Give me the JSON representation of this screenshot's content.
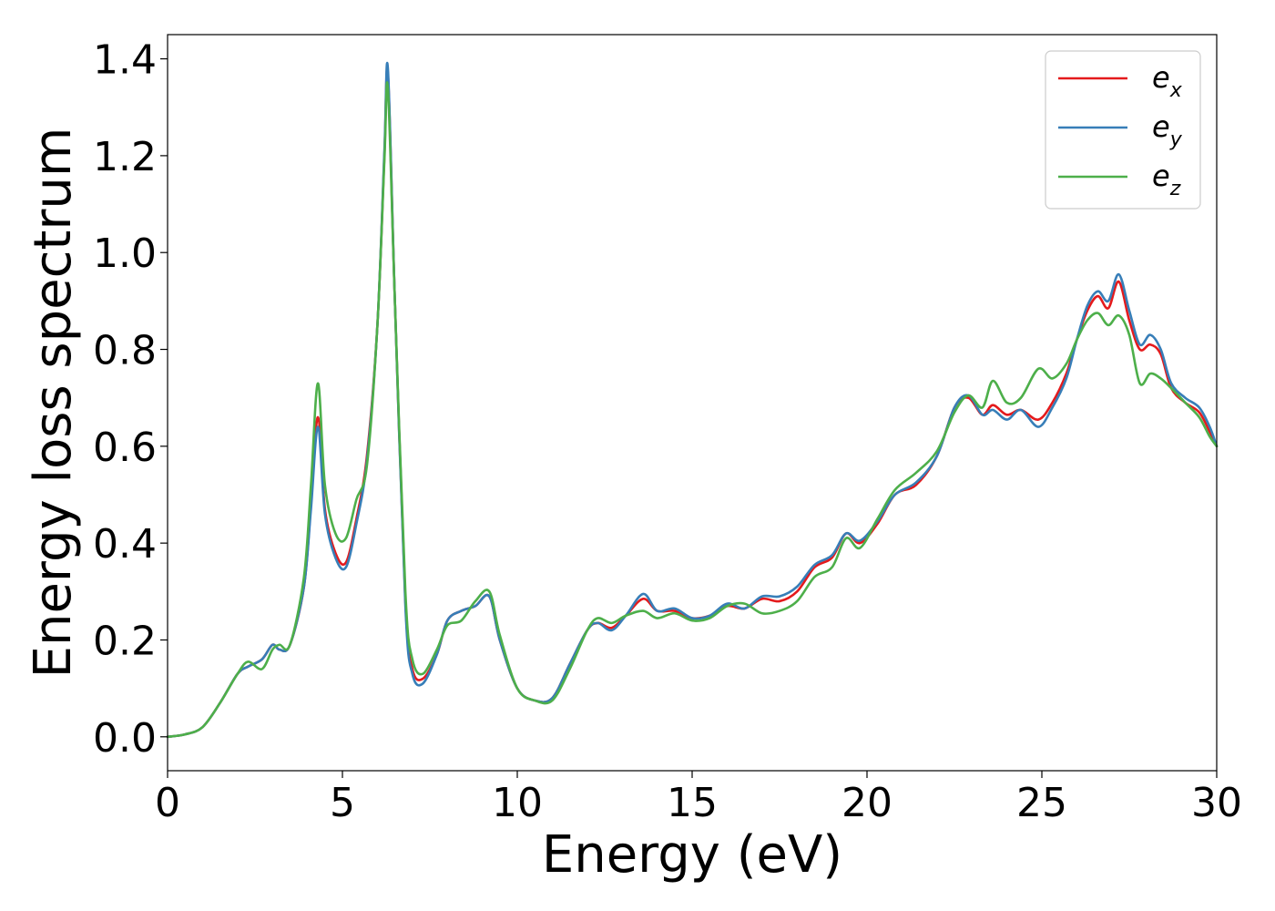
{
  "chart_data": {
    "type": "line",
    "xlabel": "Energy (eV)",
    "ylabel": "Energy loss spectrum",
    "xlim": [
      0,
      30
    ],
    "ylim": [
      -0.07,
      1.45
    ],
    "xticks": [
      0,
      5,
      10,
      15,
      20,
      25,
      30
    ],
    "xtick_labels": [
      "0",
      "5",
      "10",
      "15",
      "20",
      "25",
      "30"
    ],
    "yticks": [
      0.0,
      0.2,
      0.4,
      0.6,
      0.8,
      1.0,
      1.2,
      1.4
    ],
    "ytick_labels": [
      "0.0",
      "0.2",
      "0.4",
      "0.6",
      "0.8",
      "1.0",
      "1.2",
      "1.4"
    ],
    "grid": false,
    "legend_position": "top-right",
    "series": [
      {
        "name": "e_x",
        "legend_base": "e",
        "legend_sub": "x",
        "color": "#e41a1c",
        "x": [
          0,
          0.5,
          1.0,
          1.5,
          2.0,
          2.3,
          2.7,
          3.0,
          3.2,
          3.5,
          3.9,
          4.1,
          4.3,
          4.5,
          4.8,
          5.1,
          5.4,
          5.7,
          6.0,
          6.2,
          6.3,
          6.5,
          6.8,
          7.0,
          7.3,
          7.7,
          8.0,
          8.4,
          8.8,
          9.2,
          9.5,
          10.0,
          10.5,
          11.0,
          11.5,
          12.0,
          12.3,
          12.7,
          13.1,
          13.6,
          14.0,
          14.5,
          15.0,
          15.5,
          16.0,
          16.5,
          17.0,
          17.5,
          18.0,
          18.5,
          19.0,
          19.4,
          19.8,
          20.3,
          20.8,
          21.4,
          22.0,
          22.5,
          22.9,
          23.3,
          23.6,
          24.0,
          24.4,
          24.9,
          25.3,
          25.7,
          26.0,
          26.3,
          26.6,
          26.9,
          27.2,
          27.5,
          27.8,
          28.1,
          28.4,
          28.7,
          29.1,
          29.5,
          29.8,
          30.0
        ],
        "y": [
          0.0,
          0.005,
          0.02,
          0.07,
          0.13,
          0.145,
          0.16,
          0.19,
          0.18,
          0.19,
          0.31,
          0.48,
          0.66,
          0.47,
          0.38,
          0.36,
          0.45,
          0.58,
          0.85,
          1.2,
          1.37,
          0.9,
          0.28,
          0.14,
          0.12,
          0.17,
          0.24,
          0.26,
          0.27,
          0.29,
          0.2,
          0.1,
          0.075,
          0.08,
          0.15,
          0.22,
          0.235,
          0.225,
          0.25,
          0.285,
          0.26,
          0.26,
          0.245,
          0.25,
          0.27,
          0.265,
          0.285,
          0.28,
          0.3,
          0.35,
          0.37,
          0.42,
          0.4,
          0.44,
          0.5,
          0.52,
          0.58,
          0.68,
          0.7,
          0.665,
          0.685,
          0.665,
          0.675,
          0.655,
          0.69,
          0.75,
          0.82,
          0.88,
          0.91,
          0.885,
          0.94,
          0.86,
          0.8,
          0.81,
          0.79,
          0.72,
          0.69,
          0.67,
          0.63,
          0.6
        ]
      },
      {
        "name": "e_y",
        "legend_base": "e",
        "legend_sub": "y",
        "color": "#377eb8",
        "x": [
          0,
          0.5,
          1.0,
          1.5,
          2.0,
          2.3,
          2.7,
          3.0,
          3.2,
          3.5,
          3.9,
          4.1,
          4.3,
          4.5,
          4.8,
          5.1,
          5.4,
          5.7,
          6.0,
          6.2,
          6.3,
          6.5,
          6.8,
          7.0,
          7.3,
          7.7,
          8.0,
          8.4,
          8.8,
          9.2,
          9.5,
          10.0,
          10.5,
          11.0,
          11.5,
          12.0,
          12.3,
          12.7,
          13.1,
          13.6,
          14.0,
          14.5,
          15.0,
          15.5,
          16.0,
          16.5,
          17.0,
          17.5,
          18.0,
          18.5,
          19.0,
          19.4,
          19.8,
          20.3,
          20.8,
          21.4,
          22.0,
          22.5,
          22.9,
          23.3,
          23.6,
          24.0,
          24.4,
          24.9,
          25.3,
          25.7,
          26.0,
          26.3,
          26.6,
          26.9,
          27.2,
          27.5,
          27.8,
          28.1,
          28.4,
          28.7,
          29.1,
          29.5,
          29.8,
          30.0
        ],
        "y": [
          0.0,
          0.005,
          0.02,
          0.07,
          0.13,
          0.145,
          0.16,
          0.19,
          0.18,
          0.19,
          0.31,
          0.47,
          0.64,
          0.46,
          0.37,
          0.35,
          0.44,
          0.57,
          0.85,
          1.21,
          1.38,
          0.9,
          0.27,
          0.13,
          0.11,
          0.17,
          0.24,
          0.26,
          0.27,
          0.29,
          0.2,
          0.1,
          0.075,
          0.08,
          0.15,
          0.22,
          0.235,
          0.22,
          0.25,
          0.295,
          0.26,
          0.265,
          0.245,
          0.25,
          0.275,
          0.265,
          0.29,
          0.29,
          0.31,
          0.355,
          0.375,
          0.42,
          0.405,
          0.445,
          0.5,
          0.525,
          0.58,
          0.68,
          0.705,
          0.665,
          0.675,
          0.655,
          0.675,
          0.64,
          0.68,
          0.74,
          0.82,
          0.89,
          0.92,
          0.9,
          0.955,
          0.88,
          0.81,
          0.83,
          0.8,
          0.73,
          0.7,
          0.68,
          0.64,
          0.6
        ]
      },
      {
        "name": "e_z",
        "legend_base": "e",
        "legend_sub": "z",
        "color": "#4daf4a",
        "x": [
          0,
          0.5,
          1.0,
          1.5,
          2.0,
          2.3,
          2.7,
          3.0,
          3.2,
          3.5,
          3.9,
          4.1,
          4.3,
          4.5,
          4.8,
          5.1,
          5.4,
          5.7,
          6.0,
          6.2,
          6.3,
          6.5,
          6.8,
          7.0,
          7.3,
          7.7,
          8.0,
          8.4,
          8.8,
          9.2,
          9.5,
          10.0,
          10.5,
          11.0,
          11.5,
          12.0,
          12.3,
          12.7,
          13.1,
          13.6,
          14.0,
          14.5,
          15.0,
          15.5,
          16.0,
          16.5,
          17.0,
          17.5,
          18.0,
          18.5,
          19.0,
          19.4,
          19.8,
          20.3,
          20.8,
          21.4,
          22.0,
          22.5,
          22.9,
          23.3,
          23.6,
          24.0,
          24.4,
          24.9,
          25.3,
          25.7,
          26.0,
          26.3,
          26.6,
          26.9,
          27.2,
          27.5,
          27.8,
          28.1,
          28.4,
          28.7,
          29.1,
          29.5,
          29.8,
          30.0
        ],
        "y": [
          0.0,
          0.005,
          0.02,
          0.07,
          0.13,
          0.155,
          0.14,
          0.18,
          0.19,
          0.19,
          0.33,
          0.52,
          0.73,
          0.52,
          0.42,
          0.41,
          0.49,
          0.56,
          0.85,
          1.19,
          1.34,
          0.9,
          0.3,
          0.16,
          0.13,
          0.18,
          0.23,
          0.24,
          0.28,
          0.3,
          0.21,
          0.1,
          0.075,
          0.075,
          0.14,
          0.22,
          0.245,
          0.235,
          0.25,
          0.26,
          0.245,
          0.255,
          0.24,
          0.245,
          0.27,
          0.275,
          0.255,
          0.26,
          0.28,
          0.33,
          0.35,
          0.41,
          0.39,
          0.45,
          0.51,
          0.545,
          0.59,
          0.67,
          0.705,
          0.68,
          0.735,
          0.69,
          0.7,
          0.76,
          0.74,
          0.77,
          0.82,
          0.86,
          0.875,
          0.85,
          0.87,
          0.83,
          0.73,
          0.75,
          0.74,
          0.72,
          0.69,
          0.66,
          0.62,
          0.6
        ]
      }
    ]
  }
}
